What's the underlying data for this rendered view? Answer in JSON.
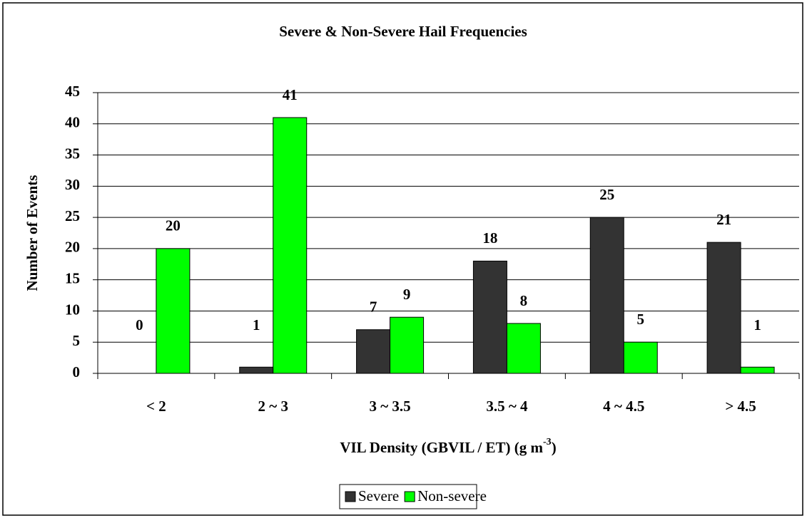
{
  "chart_data": {
    "type": "bar",
    "title": "Severe & Non-Severe Hail Frequencies",
    "y_label": "Number of Events",
    "x_label": {
      "text": "VIL Density (GBVIL / ET) (g m",
      "superscript": "-3",
      "suffix": ")"
    },
    "categories": [
      "< 2",
      "2 ~ 3",
      "3 ~ 3.5",
      "3.5 ~ 4",
      "4 ~ 4.5",
      "> 4.5"
    ],
    "series": [
      {
        "name": "Severe",
        "color": "#333333",
        "values": [
          0,
          1,
          7,
          18,
          25,
          21
        ]
      },
      {
        "name": "Non-severe",
        "color": "#00ff00",
        "values": [
          20,
          41,
          9,
          8,
          5,
          1
        ]
      }
    ],
    "ylim": [
      0,
      45
    ],
    "yticks": [
      0,
      5,
      10,
      15,
      20,
      25,
      30,
      35,
      40,
      45
    ],
    "grid": true,
    "legend": "bottom"
  }
}
